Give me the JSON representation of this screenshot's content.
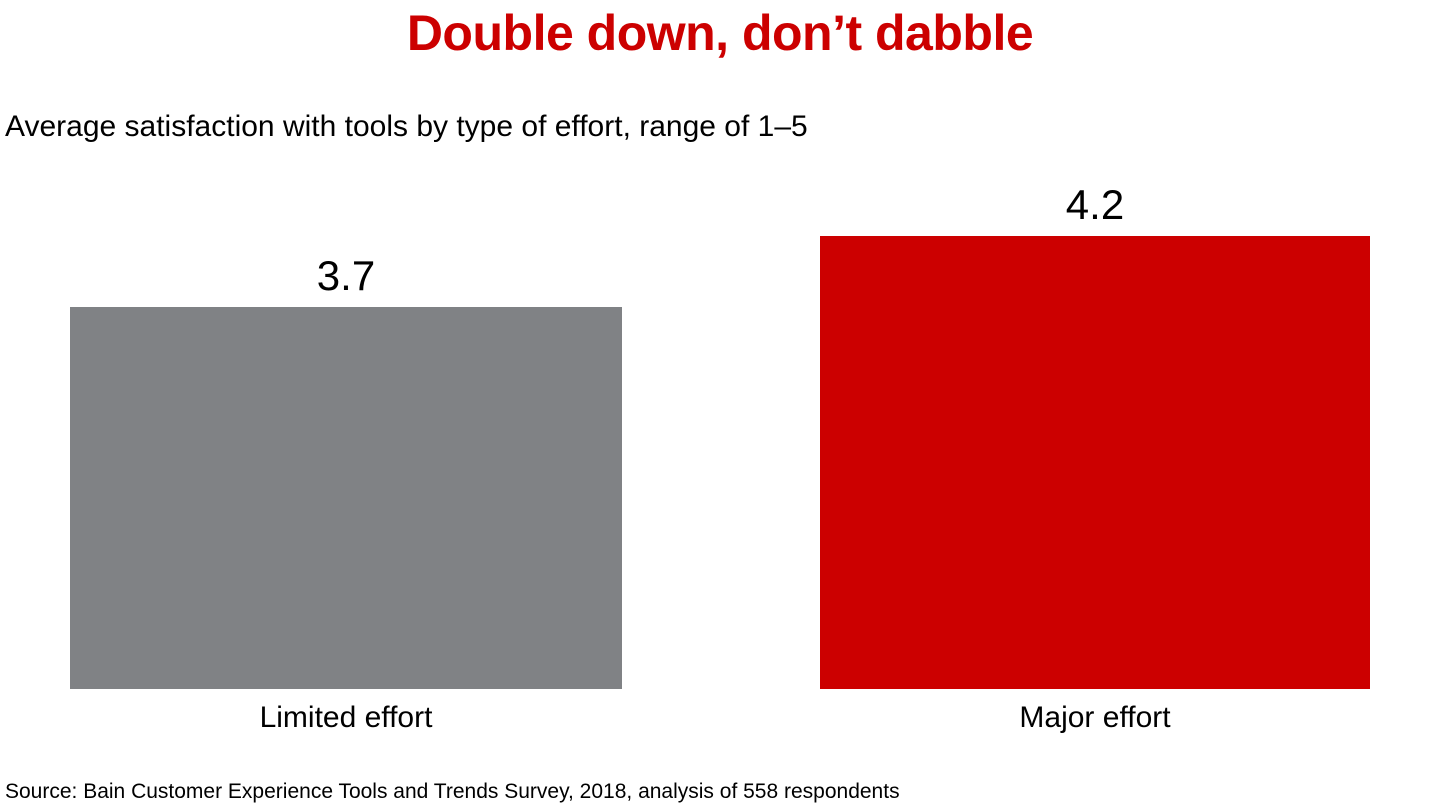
{
  "page": {
    "title": "Double down, don’t dabble",
    "subtitle": "Average satisfaction with tools by type of effort, range of 1–5",
    "source": "Source: Bain Customer Experience Tools and Trends Survey, 2018, analysis of 558 respondents"
  },
  "chart_data": {
    "type": "bar",
    "title": "Double down, don’t dabble",
    "subtitle": "Average satisfaction with tools by type of effort, range of 1–5",
    "categories": [
      "Limited effort",
      "Major effort"
    ],
    "values": [
      3.7,
      4.2
    ],
    "value_labels": [
      "3.7",
      "4.2"
    ],
    "bar_colors": [
      "#808285",
      "#cc0000"
    ],
    "xlabel": "",
    "ylabel": "",
    "ylim": [
      1,
      5
    ],
    "grid": false,
    "legend": "none",
    "axes_hidden": true,
    "source": "Source: Bain Customer Experience Tools and Trends Survey, 2018, analysis of 558 respondents",
    "colors": {
      "title": "#cc0000",
      "text": "#000000",
      "background": "#ffffff"
    }
  }
}
